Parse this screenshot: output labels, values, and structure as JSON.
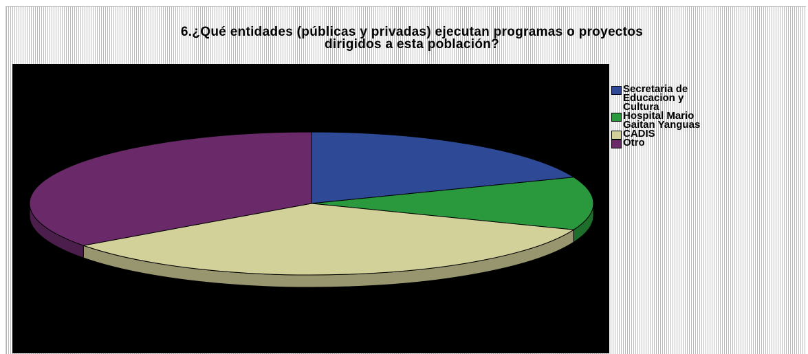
{
  "chart_data": {
    "type": "pie",
    "title_lines": [
      "6.¿Qué entidades  (públicas y privadas) ejecutan programas o proyectos",
      "dirigidos a esta población?"
    ],
    "categories": [
      "Secretaria de Educacion y Cultura",
      "Hospital Mario Gaitan Yanguas",
      "CADIS",
      "Otro"
    ],
    "values": [
      19,
      12,
      34,
      35
    ],
    "legend_lines": [
      "Secretaria de\nEducacion y\nCultura",
      "Hospital Mario\nGaitan Yanguas",
      "CADIS",
      "Otro"
    ],
    "colors": [
      "#2e4a96",
      "#2a993d",
      "#d2d19a",
      "#6a2a6a"
    ],
    "legend_position": "right",
    "pie_style": "3d"
  }
}
